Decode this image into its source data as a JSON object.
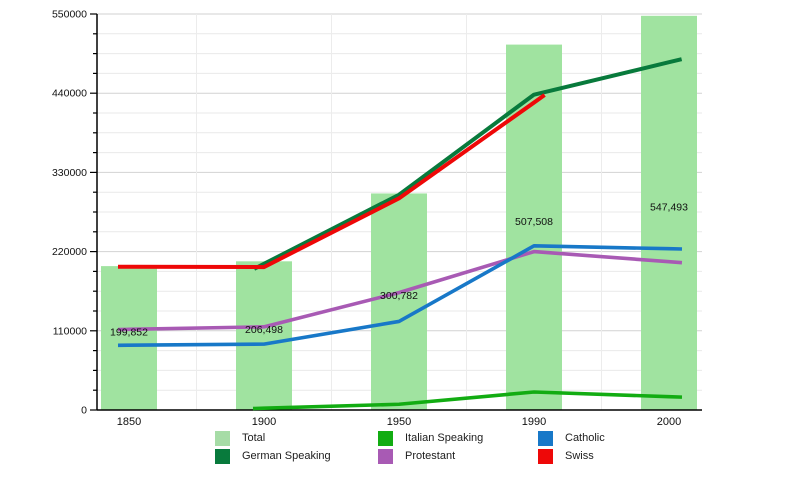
{
  "chart_data": {
    "type": "bar",
    "title": "",
    "xlabel": "",
    "ylabel": "",
    "categories": [
      "1850",
      "1900",
      "1950",
      "1990",
      "2000"
    ],
    "bars": {
      "name": "Total",
      "color": "#A0E3A0",
      "values": [
        199852,
        206498,
        300782,
        507508,
        547493
      ],
      "labels": [
        "199,852",
        "206,498",
        "300,782",
        "507,508",
        "547,493"
      ]
    },
    "series": [
      {
        "name": "German Speaking",
        "color": "#087A3C",
        "width": 4,
        "values": [
          null,
          203000,
          299000,
          438000,
          483000
        ]
      },
      {
        "name": "Italian Speaking",
        "color": "#12AC12",
        "width": 3.6,
        "values": [
          null,
          2500,
          8000,
          25000,
          18500
        ]
      },
      {
        "name": "Protestant",
        "color": "#A85AB4",
        "width": 3.6,
        "values": [
          112000,
          115500,
          163000,
          220000,
          206000
        ]
      },
      {
        "name": "Catholic",
        "color": "#1878C8",
        "width": 3.6,
        "values": [
          90000,
          91500,
          123000,
          228000,
          224000
        ]
      },
      {
        "name": "Swiss",
        "color": "#EE0808",
        "width": 4,
        "values": [
          199000,
          198500,
          294000,
          427000,
          null
        ]
      }
    ],
    "ylim": [
      0,
      550000
    ],
    "yticks_major": [
      0,
      110000,
      220000,
      330000,
      440000,
      550000
    ],
    "ytick_labels": [
      "0",
      "110000",
      "220000",
      "330000",
      "440000",
      "550000"
    ],
    "ytick_minor_step": 27500,
    "grid": "horizontal major and minor lines, faint vertical category separators",
    "legend_position": "bottom"
  },
  "legend": {
    "entries": [
      {
        "label": "Total",
        "color": "#A6DCA6"
      },
      {
        "label": "German Speaking",
        "color": "#087A3C"
      },
      {
        "label": "Italian Speaking",
        "color": "#12AC12"
      },
      {
        "label": "Protestant",
        "color": "#A85AB4"
      },
      {
        "label": "Catholic",
        "color": "#1878C8"
      },
      {
        "label": "Swiss",
        "color": "#EE0808"
      }
    ]
  },
  "colors": {
    "axis": "#000000",
    "grid_major": "#d2d2d2",
    "grid_minor": "#e9e9e9",
    "grid_vertical": "#ececec",
    "text": "#111111"
  }
}
